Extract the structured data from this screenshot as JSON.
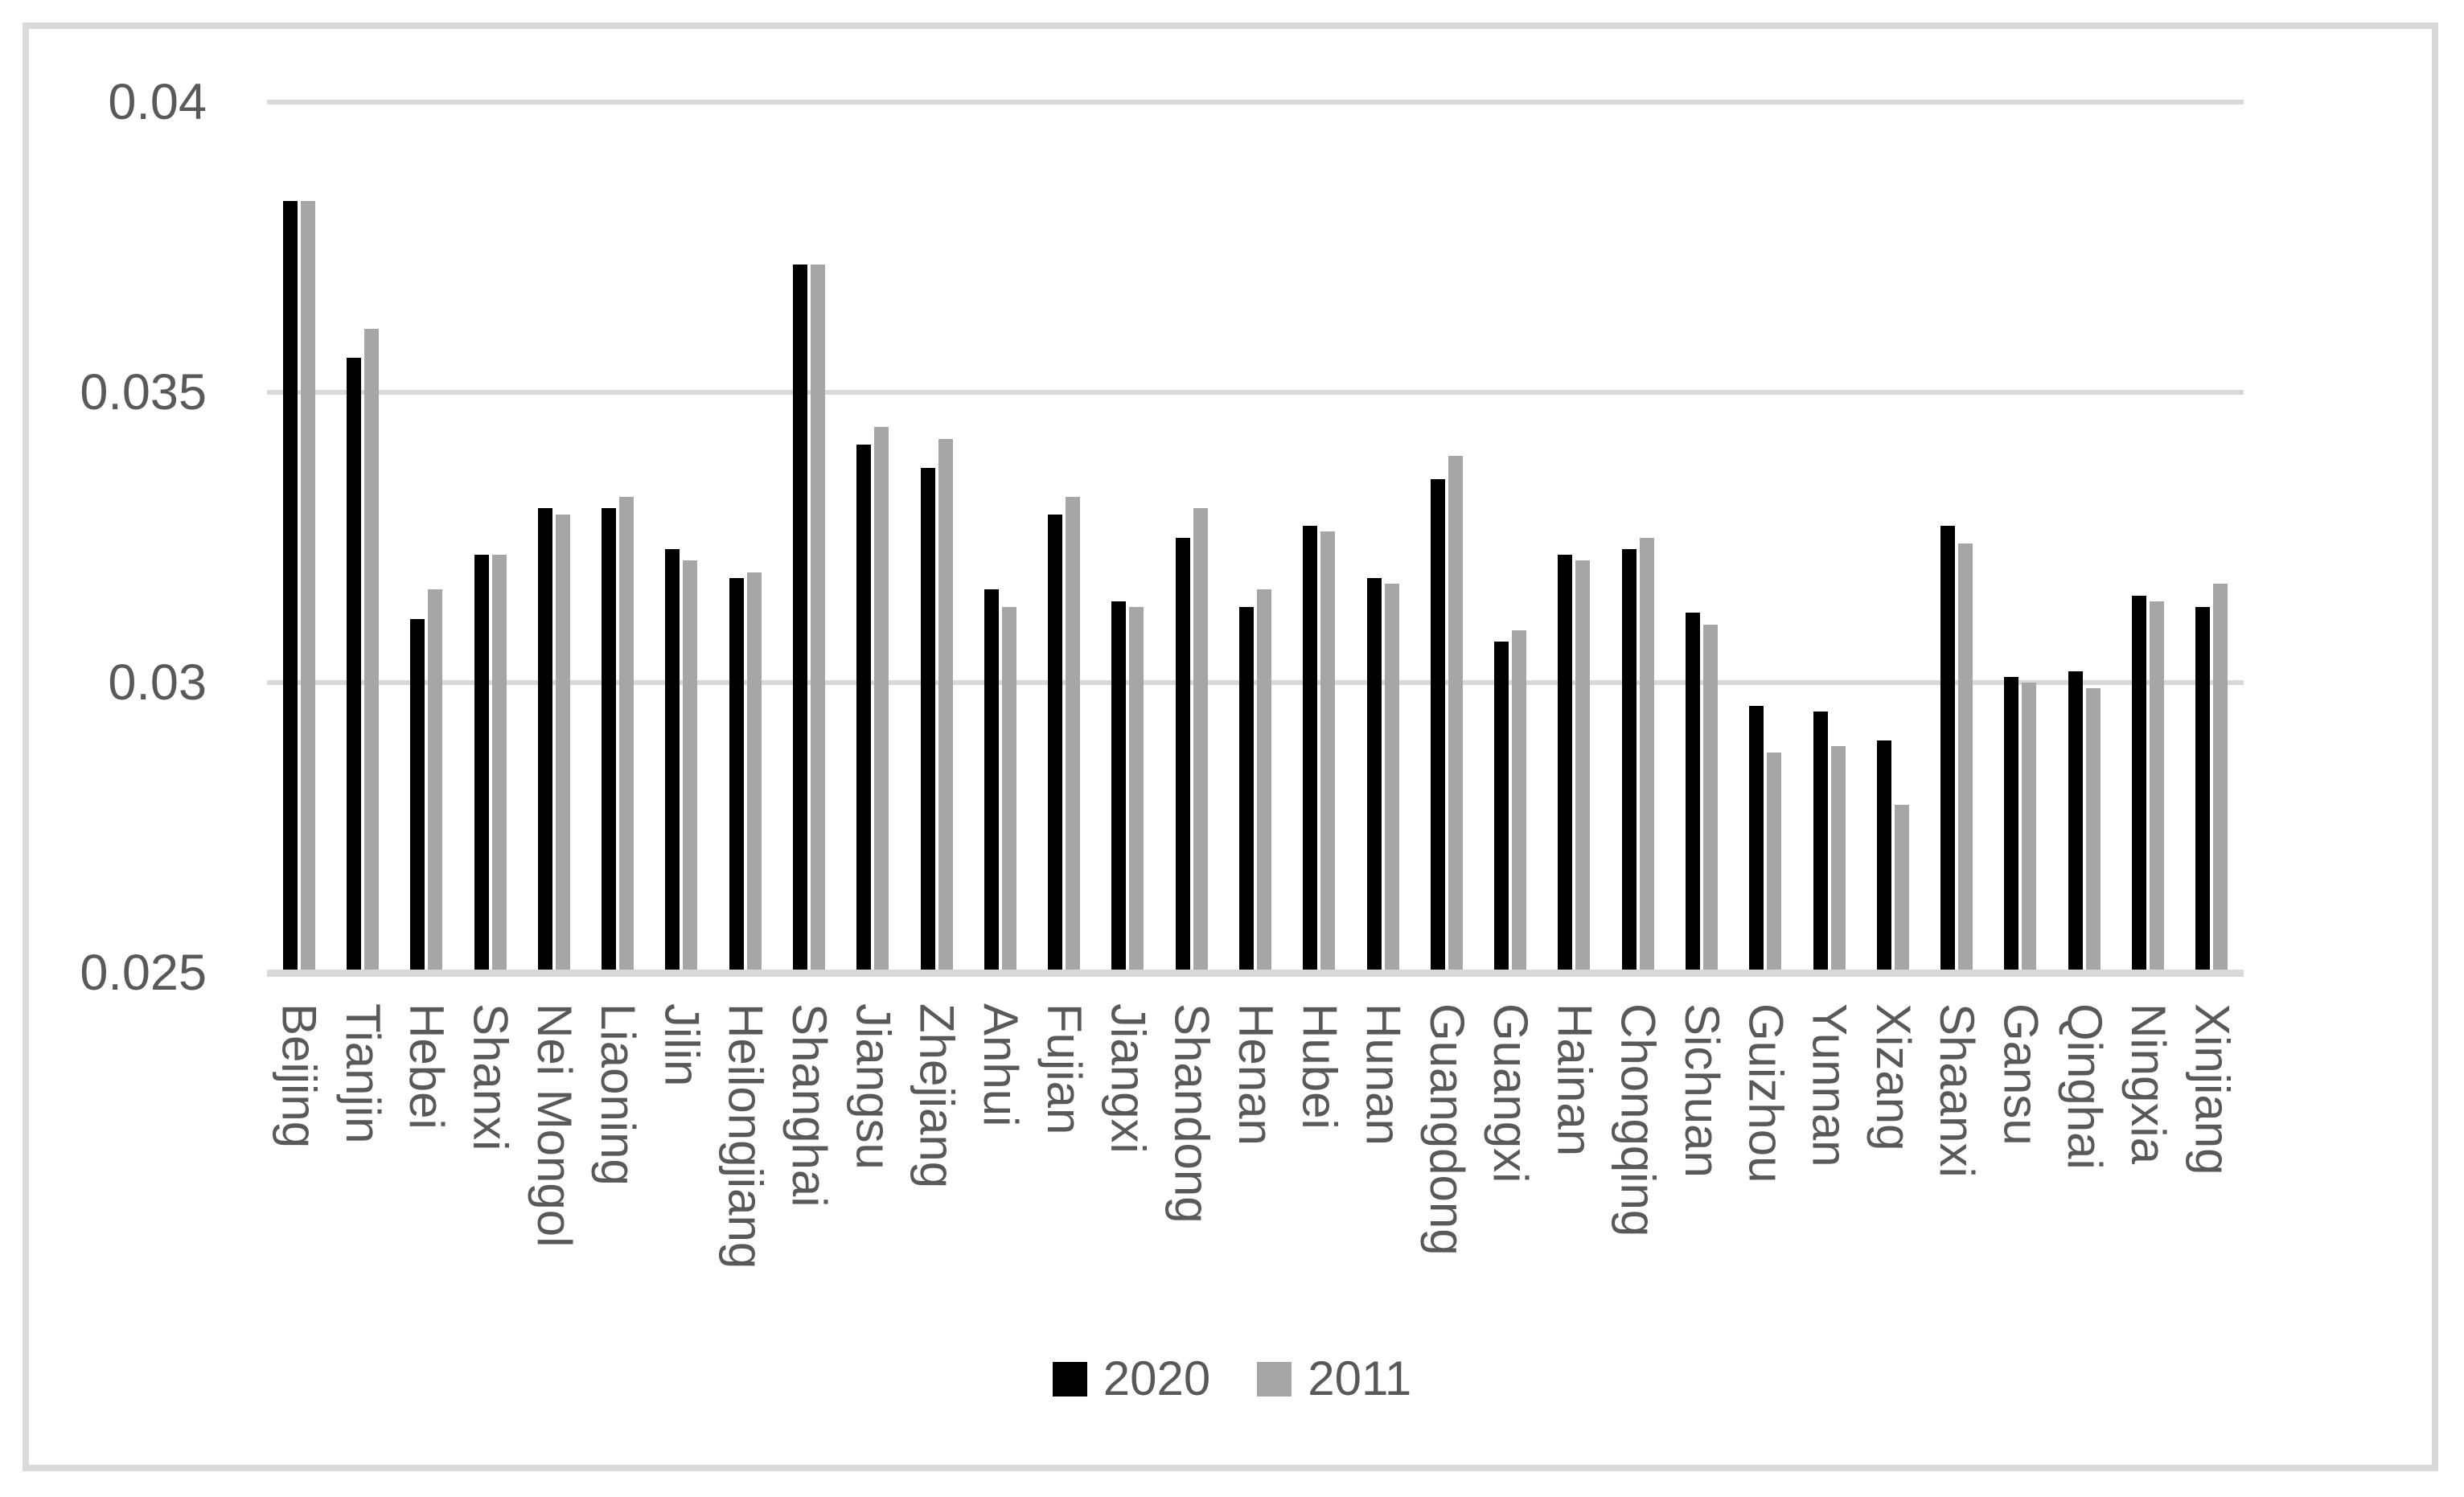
{
  "chart_data": {
    "type": "bar",
    "title": "",
    "xlabel": "",
    "ylabel": "",
    "categories": [
      "Beijing",
      "Tianjin",
      "Hebei",
      "Shanxi",
      "Nei Mongol",
      "Liaoning",
      "Jilin",
      "Heilongjiang",
      "Shanghai",
      "Jiangsu",
      "Zhejiang",
      "Anhui",
      "Fujian",
      "Jiangxi",
      "Shandong",
      "Henan",
      "Hubei",
      "Hunan",
      "Guangdong",
      "Guangxi",
      "Hainan",
      "Chongqing",
      "Sichuan",
      "Guizhou",
      "Yunnan",
      "Xizang",
      "Shaanxi",
      "Gansu",
      "Qinghai",
      "Ningxia",
      "Xinjiang"
    ],
    "series": [
      {
        "name": "2020",
        "color": "#000000",
        "values": [
          0.0383,
          0.0356,
          0.0311,
          0.0322,
          0.033,
          0.033,
          0.0323,
          0.0318,
          0.0372,
          0.0341,
          0.0337,
          0.0316,
          0.0329,
          0.0314,
          0.0325,
          0.0313,
          0.0327,
          0.0318,
          0.0335,
          0.0307,
          0.0322,
          0.0323,
          0.0312,
          0.0296,
          0.0295,
          0.029,
          0.0327,
          0.0301,
          0.0302,
          0.0315,
          0.0313
        ]
      },
      {
        "name": "2011",
        "color": "#a6a6a6",
        "values": [
          0.0383,
          0.0361,
          0.0316,
          0.0322,
          0.0329,
          0.0332,
          0.0321,
          0.0319,
          0.0372,
          0.0344,
          0.0342,
          0.0313,
          0.0332,
          0.0313,
          0.033,
          0.0316,
          0.0326,
          0.0317,
          0.0339,
          0.0309,
          0.0321,
          0.0325,
          0.031,
          0.0288,
          0.0289,
          0.0279,
          0.0324,
          0.03,
          0.0299,
          0.0314,
          0.0317
        ]
      }
    ],
    "ylim": [
      0.025,
      0.04
    ],
    "yticks": [
      {
        "value": 0.025,
        "label": "0.025"
      },
      {
        "value": 0.03,
        "label": "0.03"
      },
      {
        "value": 0.035,
        "label": "0.035"
      },
      {
        "value": 0.04,
        "label": "0.04"
      }
    ],
    "grid": true,
    "legend_position": "bottom-center"
  },
  "colors": {
    "background": "#ffffff",
    "border": "#d9d9d9",
    "gridline": "#d9d9d9",
    "axis_line": "#d9d9d9",
    "tick_text": "#595959"
  }
}
